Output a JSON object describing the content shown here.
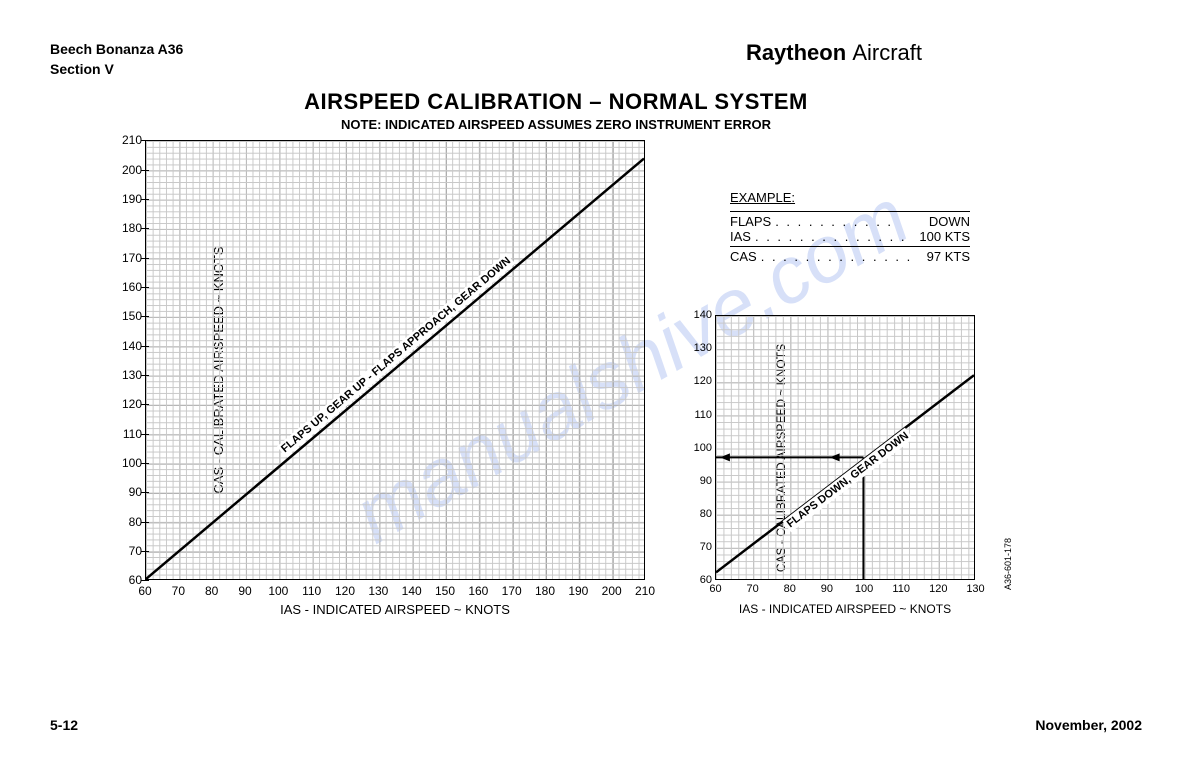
{
  "header": {
    "aircraft": "Beech Bonanza A36",
    "section": "Section V",
    "brand": "Raytheon",
    "brand_suffix": "Aircraft"
  },
  "title": "AIRSPEED CALIBRATION – NORMAL SYSTEM",
  "subtitle": "NOTE: INDICATED AIRSPEED ASSUMES ZERO INSTRUMENT ERROR",
  "watermark": "manualshive.com",
  "chart1": {
    "type": "line",
    "xlabel": "IAS - INDICATED AIRSPEED ~ KNOTS",
    "ylabel": "CAS - CALIBRATED AIRSPEED ~ KNOTS",
    "xlim": [
      60,
      210
    ],
    "ylim": [
      60,
      210
    ],
    "xtick_step": 10,
    "ytick_step": 10,
    "minor_div": 5,
    "grid_color": "#c8c8c8",
    "major_grid_color": "#888888",
    "line_color": "#000000",
    "line_width": 2,
    "line_points": [
      [
        60,
        60
      ],
      [
        210,
        204
      ]
    ],
    "line_label": "FLAPS UP, GEAR UP - FLAPS APPROACH, GEAR DOWN",
    "label_fontsize": 11
  },
  "chart2": {
    "type": "line",
    "xlabel": "IAS - INDICATED AIRSPEED ~ KNOTS",
    "ylabel": "CAS - CALIBRATED AIRSPEED ~ KNOTS",
    "xlim": [
      60,
      130
    ],
    "ylim": [
      60,
      140
    ],
    "xtick_step": 10,
    "ytick_step": 10,
    "minor_div": 5,
    "grid_color": "#c8c8c8",
    "major_grid_color": "#888888",
    "line_color": "#000000",
    "line_width": 2,
    "line_points": [
      [
        60,
        62
      ],
      [
        130,
        122
      ]
    ],
    "line_label": "FLAPS DOWN, GEAR DOWN",
    "example_marker": {
      "ias": 100,
      "cas": 97
    },
    "label_fontsize": 11
  },
  "example": {
    "heading": "EXAMPLE:",
    "rows": [
      {
        "label": "FLAPS",
        "value": "DOWN"
      },
      {
        "label": "IAS",
        "value": "100 KTS"
      }
    ],
    "result": {
      "label": "CAS",
      "value": "97 KTS"
    }
  },
  "docref": "A36-601-178",
  "footer": {
    "page": "5-12",
    "date": "November, 2002"
  },
  "colors": {
    "text": "#000000",
    "background": "#ffffff",
    "watermark": "#b7c8f3"
  }
}
